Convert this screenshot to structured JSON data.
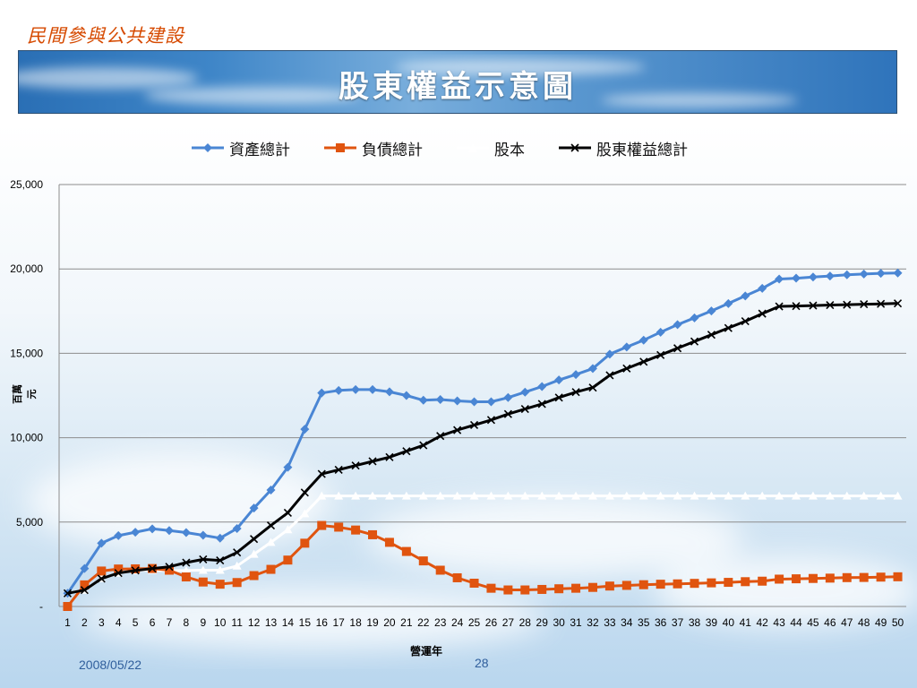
{
  "header": {
    "org_title": "民間參與公共建設"
  },
  "banner": {
    "title": "股東權益示意圖"
  },
  "footer": {
    "date": "2008/05/22",
    "page": "28"
  },
  "colors": {
    "assets": "#4a86d4",
    "liabilities": "#e0540f",
    "capital": "#ffffff",
    "equity": "#000000",
    "grid": "#8c8c8c"
  },
  "chart_data": {
    "type": "line",
    "xlabel": "營運年",
    "ylabel": "百萬元",
    "ylim": [
      0,
      25000
    ],
    "yticks": [
      0,
      5000,
      10000,
      15000,
      20000,
      25000
    ],
    "ytick_labels": [
      "-",
      "5,000",
      "10,000",
      "15,000",
      "20,000",
      "25,000"
    ],
    "grid": true,
    "legend_position": "top",
    "x": [
      1,
      2,
      3,
      4,
      5,
      6,
      7,
      8,
      9,
      10,
      11,
      12,
      13,
      14,
      15,
      16,
      17,
      18,
      19,
      20,
      21,
      22,
      23,
      24,
      25,
      26,
      27,
      28,
      29,
      30,
      31,
      32,
      33,
      34,
      35,
      36,
      37,
      38,
      39,
      40,
      41,
      42,
      43,
      44,
      45,
      46,
      47,
      48,
      49,
      50
    ],
    "series": [
      {
        "name": "資產總計",
        "color": "#4a86d4",
        "marker": "diamond",
        "values": [
          780,
          2250,
          3750,
          4200,
          4400,
          4600,
          4500,
          4380,
          4220,
          4050,
          4620,
          5830,
          6900,
          8250,
          10500,
          12650,
          12800,
          12850,
          12850,
          12720,
          12500,
          12220,
          12260,
          12180,
          12130,
          12130,
          12380,
          12700,
          13030,
          13420,
          13740,
          14100,
          14950,
          15370,
          15780,
          16250,
          16700,
          17100,
          17510,
          17950,
          18400,
          18850,
          19400,
          19450,
          19520,
          19580,
          19650,
          19700,
          19740,
          19760
        ]
      },
      {
        "name": "負債總計",
        "color": "#e0540f",
        "marker": "square",
        "values": [
          0,
          1280,
          2100,
          2220,
          2230,
          2250,
          2150,
          1750,
          1450,
          1320,
          1420,
          1830,
          2200,
          2750,
          3750,
          4800,
          4700,
          4530,
          4250,
          3800,
          3260,
          2700,
          2150,
          1700,
          1380,
          1080,
          980,
          980,
          1010,
          1050,
          1080,
          1130,
          1210,
          1250,
          1290,
          1320,
          1340,
          1370,
          1400,
          1430,
          1470,
          1500,
          1620,
          1640,
          1660,
          1680,
          1710,
          1720,
          1740,
          1760
        ]
      },
      {
        "name": "股本",
        "color": "#ffffff",
        "marker": "triangle",
        "values": [
          780,
          970,
          1650,
          1980,
          2130,
          2150,
          2120,
          2130,
          2150,
          2150,
          2400,
          3100,
          3800,
          4550,
          5500,
          6550,
          6550,
          6550,
          6550,
          6550,
          6550,
          6550,
          6550,
          6550,
          6550,
          6550,
          6550,
          6550,
          6550,
          6550,
          6550,
          6550,
          6550,
          6550,
          6550,
          6550,
          6550,
          6550,
          6550,
          6550,
          6550,
          6550,
          6550,
          6550,
          6550,
          6550,
          6550,
          6550,
          6550,
          6550
        ]
      },
      {
        "name": "股東權益總計",
        "color": "#000000",
        "marker": "x",
        "values": [
          780,
          970,
          1650,
          1980,
          2130,
          2250,
          2350,
          2600,
          2790,
          2730,
          3200,
          4000,
          4800,
          5550,
          6750,
          7850,
          8100,
          8350,
          8600,
          8850,
          9200,
          9550,
          10100,
          10450,
          10750,
          11050,
          11400,
          11700,
          12000,
          12380,
          12700,
          12970,
          13700,
          14100,
          14500,
          14900,
          15300,
          15700,
          16100,
          16500,
          16900,
          17350,
          17780,
          17800,
          17830,
          17860,
          17880,
          17910,
          17930,
          17960
        ]
      }
    ]
  }
}
